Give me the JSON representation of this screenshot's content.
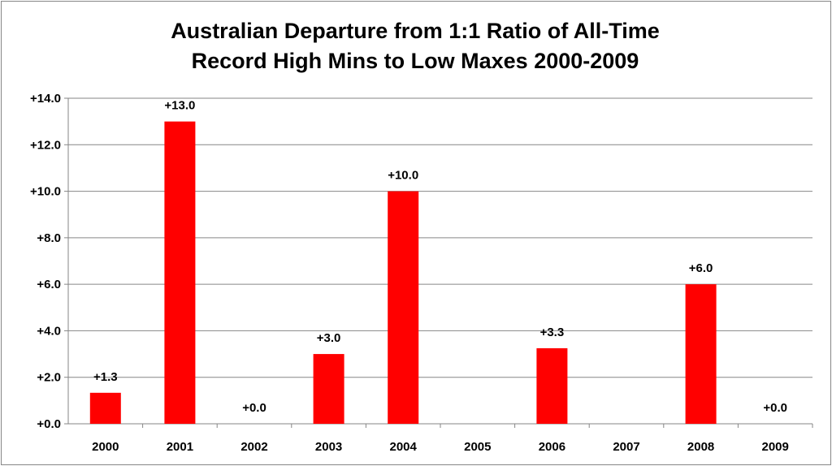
{
  "chart_data": {
    "type": "bar",
    "title": "Australian  Departure from 1:1 Ratio of All-Time\nRecord High Mins to Low Maxes 2000-2009",
    "xlabel": "",
    "ylabel": "",
    "categories": [
      "2000",
      "2001",
      "2002",
      "2003",
      "2004",
      "2005",
      "2006",
      "2007",
      "2008",
      "2009"
    ],
    "series": [
      {
        "values": [
          1.333,
          13.0,
          0.0,
          3.0,
          10.0,
          null,
          3.25,
          null,
          6.0,
          0.0
        ],
        "data_labels": [
          "+1.3",
          "+13.0",
          "+0.0",
          "+3.0",
          "+10.0",
          null,
          "+3.3",
          null,
          "+6.0",
          "+0.0"
        ],
        "color": "#FF0000"
      }
    ],
    "ylim": [
      0,
      14
    ],
    "y_ticks": [
      0,
      2,
      4,
      6,
      8,
      10,
      12,
      14
    ],
    "y_tick_labels": [
      "+0.0",
      "+2.0",
      "+4.0",
      "+6.0",
      "+8.0",
      "+10.0",
      "+12.0",
      "+14.0"
    ],
    "grid": true,
    "legend": "none"
  }
}
